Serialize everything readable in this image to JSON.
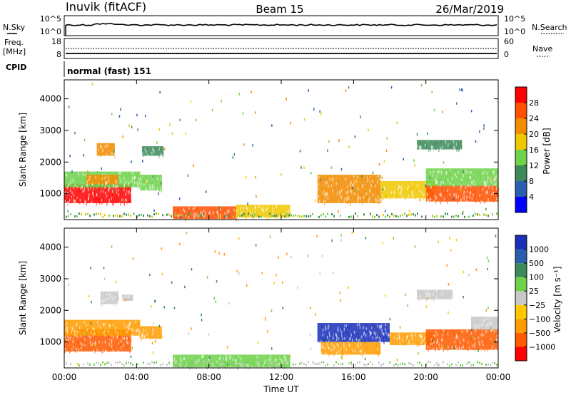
{
  "header": {
    "radar": "Inuvik (fitACF)",
    "beam": "Beam 15",
    "date": "26/Mar/2019"
  },
  "panels": {
    "noise": {
      "left_label": "N.Sky",
      "left_ticks": [
        "10^5",
        "10^0"
      ],
      "right_label": "N.Search",
      "right_ticks": [
        "10^5",
        "10^0"
      ]
    },
    "freq": {
      "left_label_1": "Freq.",
      "left_label_2": "[MHz]",
      "left_ticks": [
        "18",
        "8"
      ],
      "right_label": "Nave",
      "right_ticks": [
        "60",
        "0"
      ]
    },
    "cpid": {
      "label": "CPID",
      "text": "normal (fast) 151"
    }
  },
  "colors": {
    "power_scale": [
      "#0000ff",
      "#2a5fb0",
      "#3c8a5a",
      "#6fd24b",
      "#f0c800",
      "#f28c00",
      "#ff5000",
      "#ff0000"
    ],
    "velocity_scale": [
      "#ff0000",
      "#ff5a00",
      "#ff9c00",
      "#ffc800",
      "#c8c8c8",
      "#6fd24b",
      "#3c8a5a",
      "#2a5fb0",
      "#1a2fb8"
    ],
    "ground_scatter": "#c8c8c8"
  },
  "chart_data": [
    {
      "type": "heatmap",
      "name": "power",
      "ylabel": "Slant Range [km]",
      "yticks": [
        1000,
        2000,
        3000,
        4000
      ],
      "ylim": [
        180,
        4600
      ],
      "xticks": [
        "00:00",
        "04:00",
        "08:00",
        "12:00",
        "16:00",
        "20:00",
        "00:00"
      ],
      "xlim_hours": [
        0,
        24
      ],
      "colorbar": {
        "label": "Power [dB]",
        "ticks": [
          4,
          8,
          12,
          16,
          20,
          24,
          28
        ],
        "range": [
          0,
          32
        ]
      },
      "regions": [
        {
          "t0": 0.0,
          "t1": 3.7,
          "r0": 700,
          "r1": 1300,
          "value": 28
        },
        {
          "t0": 0.0,
          "t1": 4.2,
          "r0": 1200,
          "r1": 1700,
          "value": 14
        },
        {
          "t0": 1.2,
          "t1": 3.0,
          "r0": 1300,
          "r1": 1600,
          "value": 20
        },
        {
          "t0": 1.8,
          "t1": 2.8,
          "r0": 2200,
          "r1": 2600,
          "value": 22
        },
        {
          "t0": 4.2,
          "t1": 5.4,
          "r0": 1100,
          "r1": 1600,
          "value": 13
        },
        {
          "t0": 4.3,
          "t1": 5.5,
          "r0": 2200,
          "r1": 2500,
          "value": 10
        },
        {
          "t0": 6.0,
          "t1": 9.5,
          "r0": 200,
          "r1": 600,
          "value": 26
        },
        {
          "t0": 9.5,
          "t1": 12.5,
          "r0": 250,
          "r1": 650,
          "value": 16
        },
        {
          "t0": 14.0,
          "t1": 17.5,
          "r0": 700,
          "r1": 1600,
          "value": 20
        },
        {
          "t0": 17.5,
          "t1": 20.5,
          "r0": 850,
          "r1": 1400,
          "value": 18
        },
        {
          "t0": 20.0,
          "t1": 24.0,
          "r0": 750,
          "r1": 1250,
          "value": 27
        },
        {
          "t0": 20.0,
          "t1": 24.0,
          "r0": 1250,
          "r1": 1800,
          "value": 14
        },
        {
          "t0": 19.5,
          "t1": 22.0,
          "r0": 2400,
          "r1": 2700,
          "value": 10
        }
      ]
    },
    {
      "type": "heatmap",
      "name": "velocity",
      "ylabel": "Slant Range [km]",
      "yticks": [
        1000,
        2000,
        3000,
        4000
      ],
      "ylim": [
        180,
        4600
      ],
      "xticks": [
        "00:00",
        "04:00",
        "08:00",
        "12:00",
        "16:00",
        "20:00",
        "00:00"
      ],
      "xlim_hours": [
        0,
        24
      ],
      "xlabel": "Time UT",
      "colorbar": {
        "label": "Velocity [m s⁻¹]",
        "ticks": [
          "1000",
          "500",
          "100",
          "25",
          "−25",
          "−100",
          "−500",
          "−1000"
        ]
      },
      "regions": [
        {
          "t0": 0.0,
          "t1": 3.7,
          "r0": 700,
          "r1": 1400,
          "value": "-300"
        },
        {
          "t0": 0.0,
          "t1": 4.2,
          "r0": 1200,
          "r1": 1700,
          "value": "-150"
        },
        {
          "t0": 2.0,
          "t1": 3.0,
          "r0": 2200,
          "r1": 2600,
          "value": "0"
        },
        {
          "t0": 3.2,
          "t1": 3.8,
          "r0": 2300,
          "r1": 2500,
          "value": "0"
        },
        {
          "t0": 4.2,
          "t1": 5.4,
          "r0": 1100,
          "r1": 1500,
          "value": "-120"
        },
        {
          "t0": 6.0,
          "t1": 12.5,
          "r0": 200,
          "r1": 600,
          "value": "60"
        },
        {
          "t0": 14.0,
          "t1": 18.0,
          "r0": 1000,
          "r1": 1600,
          "value": "800"
        },
        {
          "t0": 14.2,
          "t1": 17.5,
          "r0": 600,
          "r1": 1000,
          "value": "-200"
        },
        {
          "t0": 18.0,
          "t1": 20.5,
          "r0": 900,
          "r1": 1300,
          "value": "-150"
        },
        {
          "t0": 20.0,
          "t1": 24.0,
          "r0": 750,
          "r1": 1400,
          "value": "-400"
        },
        {
          "t0": 22.5,
          "t1": 24.0,
          "r0": 1400,
          "r1": 1800,
          "value": "0"
        },
        {
          "t0": 19.5,
          "t1": 21.5,
          "r0": 2350,
          "r1": 2650,
          "value": "0"
        }
      ]
    }
  ]
}
